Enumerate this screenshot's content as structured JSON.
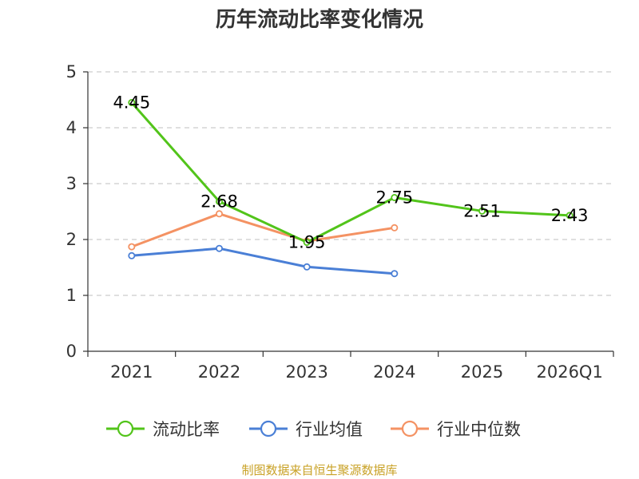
{
  "chart_data": {
    "type": "line",
    "title": "历年流动比率变化情况",
    "categories": [
      "2021",
      "2022",
      "2023",
      "2024",
      "2025",
      "2026Q1"
    ],
    "ylim": [
      0,
      5
    ],
    "yticks": [
      "0",
      "1",
      "2",
      "3",
      "4",
      "5"
    ],
    "grid": true,
    "legend_position": "bottom",
    "series": [
      {
        "name": "流动比率",
        "color": "#52c41a",
        "values": [
          4.45,
          2.68,
          1.95,
          2.75,
          2.51,
          2.43
        ],
        "labels": [
          "4.45",
          "2.68",
          "1.95",
          "2.75",
          "2.51",
          "2.43"
        ]
      },
      {
        "name": "行业均值",
        "color": "#4a7fd6",
        "values": [
          1.71,
          1.84,
          1.51,
          1.39,
          null,
          null
        ]
      },
      {
        "name": "行业中位数",
        "color": "#f49263",
        "values": [
          1.87,
          2.46,
          1.97,
          2.21,
          null,
          null
        ]
      }
    ]
  },
  "source_text": "制图数据来自恒生聚源数据库",
  "source_color": "#c9a227"
}
